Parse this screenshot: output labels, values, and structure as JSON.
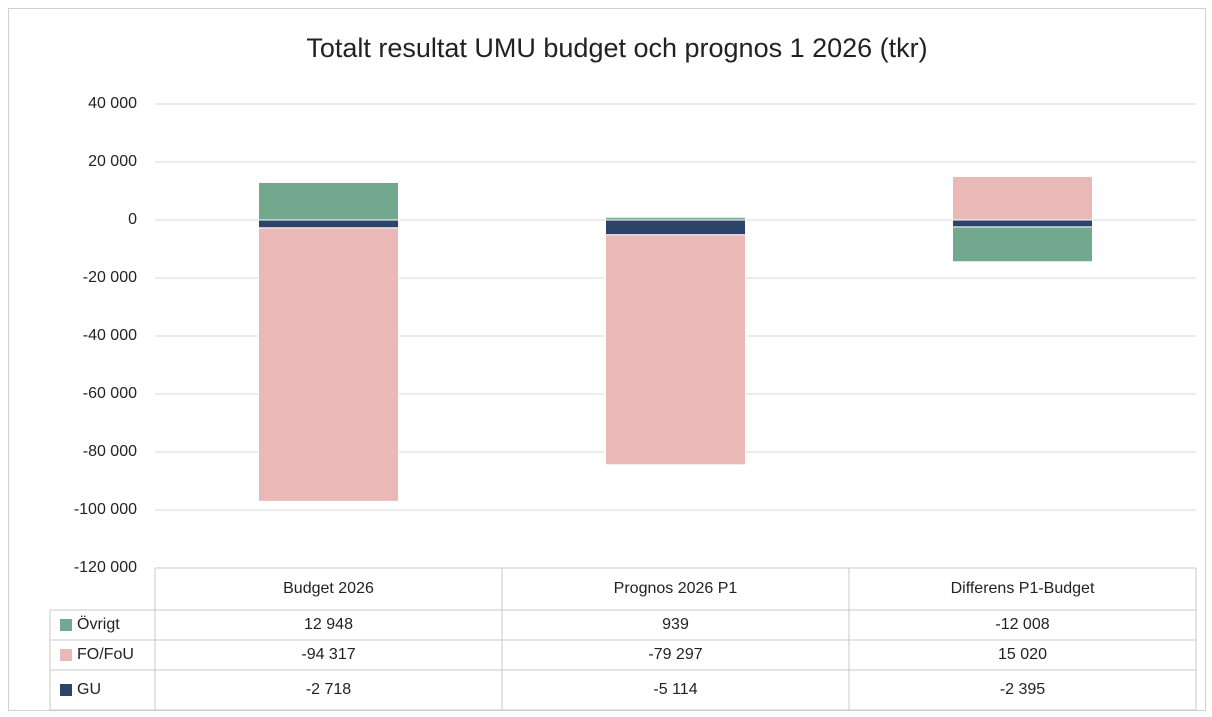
{
  "chart_data": {
    "type": "bar",
    "stacked": true,
    "title": "Totalt resultat UMU budget och prognos 1 2026 (tkr)",
    "categories": [
      "Budget 2026",
      "Prognos 2026 P1",
      "Differens P1-Budget"
    ],
    "series": [
      {
        "name": "Övrigt",
        "color": "#72a88e",
        "values": [
          12948,
          939,
          -12008
        ],
        "value_labels": [
          "12 948",
          "939",
          "-12 008"
        ]
      },
      {
        "name": "FO/FoU",
        "color": "#ebb8b8",
        "values": [
          -94317,
          -79297,
          15020
        ],
        "value_labels": [
          "-94 317",
          "-79 297",
          "15 020"
        ]
      },
      {
        "name": "GU",
        "color": "#2b4468",
        "values": [
          -2718,
          -5114,
          -2395
        ],
        "value_labels": [
          "-2 718",
          "-5 114",
          "-2 395"
        ]
      }
    ],
    "ylim": [
      -120000,
      40000
    ],
    "yticks": [
      {
        "value": -120000,
        "label": "-120 000"
      },
      {
        "value": -100000,
        "label": "-100 000"
      },
      {
        "value": -80000,
        "label": "-80 000"
      },
      {
        "value": -60000,
        "label": "-60 000"
      },
      {
        "value": -40000,
        "label": "-40 000"
      },
      {
        "value": -20000,
        "label": "-20 000"
      },
      0,
      {
        "value": 20000,
        "label": "20 000"
      },
      {
        "value": 40000,
        "label": "40 000"
      }
    ],
    "grid": true,
    "data_table": true
  }
}
